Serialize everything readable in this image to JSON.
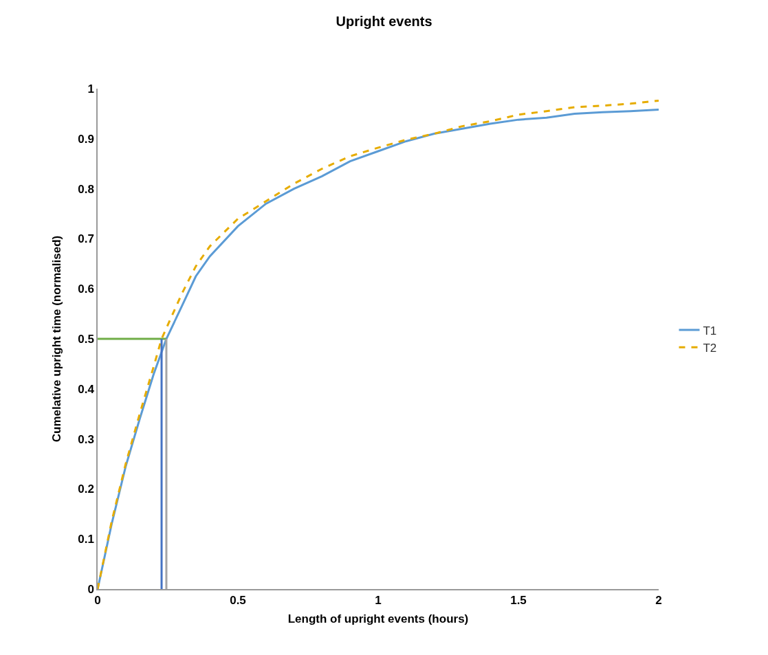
{
  "chart_data": {
    "type": "line",
    "title": "Upright events",
    "xlabel": "Length of upright events (hours)",
    "ylabel": "Cumelative upright time (normalised)",
    "xlim": [
      0,
      2
    ],
    "xticks": [
      0,
      0.5,
      1,
      1.5,
      2
    ],
    "ylim": [
      0,
      1
    ],
    "yticks": [
      0,
      0.1,
      0.2,
      0.3,
      0.4,
      0.5,
      0.6,
      0.7,
      0.8,
      0.9,
      1
    ],
    "legend": "right",
    "marker": "none",
    "series": [
      {
        "name": "T1",
        "color": "#5b9bd5",
        "line_style": "solid",
        "x": [
          0,
          0.05,
          0.1,
          0.15,
          0.2,
          0.245,
          0.3,
          0.35,
          0.4,
          0.5,
          0.6,
          0.7,
          0.8,
          0.9,
          1.0,
          1.1,
          1.2,
          1.3,
          1.4,
          1.5,
          1.6,
          1.7,
          1.8,
          1.9,
          2.0
        ],
        "values": [
          0,
          0.13,
          0.245,
          0.34,
          0.43,
          0.5,
          0.565,
          0.625,
          0.665,
          0.725,
          0.77,
          0.8,
          0.825,
          0.855,
          0.875,
          0.895,
          0.91,
          0.92,
          0.93,
          0.938,
          0.942,
          0.95,
          0.953,
          0.955,
          0.958
        ]
      },
      {
        "name": "T2",
        "color": "#e6ac00",
        "line_style": "dashed",
        "x": [
          0,
          0.05,
          0.1,
          0.15,
          0.2,
          0.228,
          0.3,
          0.35,
          0.4,
          0.5,
          0.6,
          0.7,
          0.8,
          0.9,
          1.0,
          1.1,
          1.2,
          1.3,
          1.4,
          1.5,
          1.6,
          1.7,
          1.8,
          1.9,
          2.0
        ],
        "values": [
          0,
          0.135,
          0.25,
          0.35,
          0.445,
          0.5,
          0.59,
          0.645,
          0.685,
          0.74,
          0.775,
          0.81,
          0.84,
          0.865,
          0.882,
          0.898,
          0.91,
          0.925,
          0.935,
          0.948,
          0.955,
          0.963,
          0.966,
          0.97,
          0.976
        ]
      },
      {
        "color": "#70ad47",
        "line_style": "solid",
        "x": [
          0,
          0.245
        ],
        "values": [
          0.5,
          0.5
        ]
      },
      {
        "color": "#4472c4",
        "line_style": "solid",
        "x": [
          0.228,
          0.228
        ],
        "values": [
          0,
          0.5
        ]
      },
      {
        "color": "#a5a5a5",
        "line_style": "solid",
        "x": [
          0.245,
          0.245
        ],
        "values": [
          0,
          0.5
        ]
      }
    ]
  }
}
